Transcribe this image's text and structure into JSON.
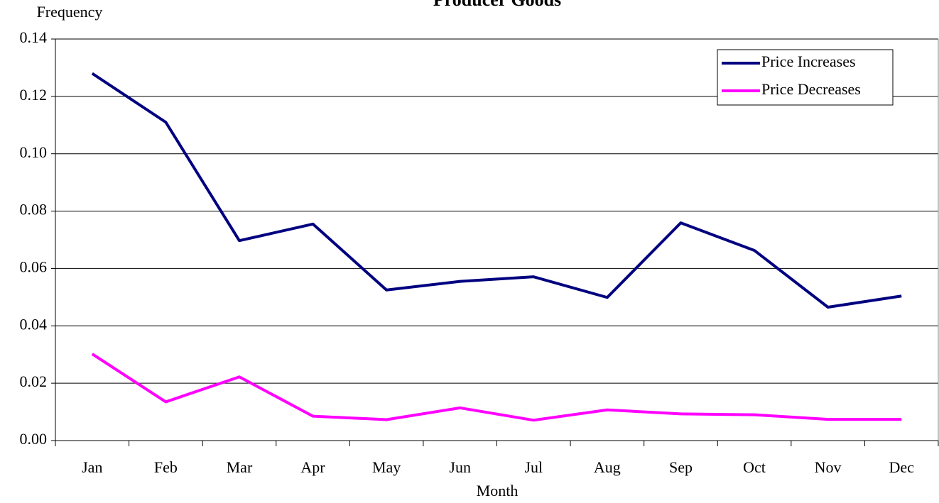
{
  "chart_data": {
    "type": "line",
    "title": "Producer Goods",
    "y_label": "Frequency",
    "x_label": "Month",
    "categories": [
      "Jan",
      "Feb",
      "Mar",
      "Apr",
      "May",
      "Jun",
      "Jul",
      "Aug",
      "Sep",
      "Oct",
      "Nov",
      "Dec"
    ],
    "series": [
      {
        "name": "Price Increases",
        "color": "#000080",
        "values": [
          0.128,
          0.111,
          0.0697,
          0.0755,
          0.0525,
          0.0555,
          0.0571,
          0.0499,
          0.0759,
          0.0663,
          0.0465,
          0.0504
        ]
      },
      {
        "name": "Price Decreases",
        "color": "#ff00ff",
        "values": [
          0.0302,
          0.0135,
          0.0222,
          0.0085,
          0.0073,
          0.0114,
          0.0071,
          0.0107,
          0.0093,
          0.009,
          0.0074,
          0.0074
        ]
      }
    ],
    "ylim": [
      0,
      0.14
    ],
    "yticks": [
      {
        "value": 0,
        "label": "0.00"
      },
      0.02,
      0.04,
      0.06,
      0.08,
      {
        "value": 0.1,
        "label": "0.10"
      },
      0.12,
      0.14
    ],
    "grid": true,
    "legend": "top-right"
  }
}
